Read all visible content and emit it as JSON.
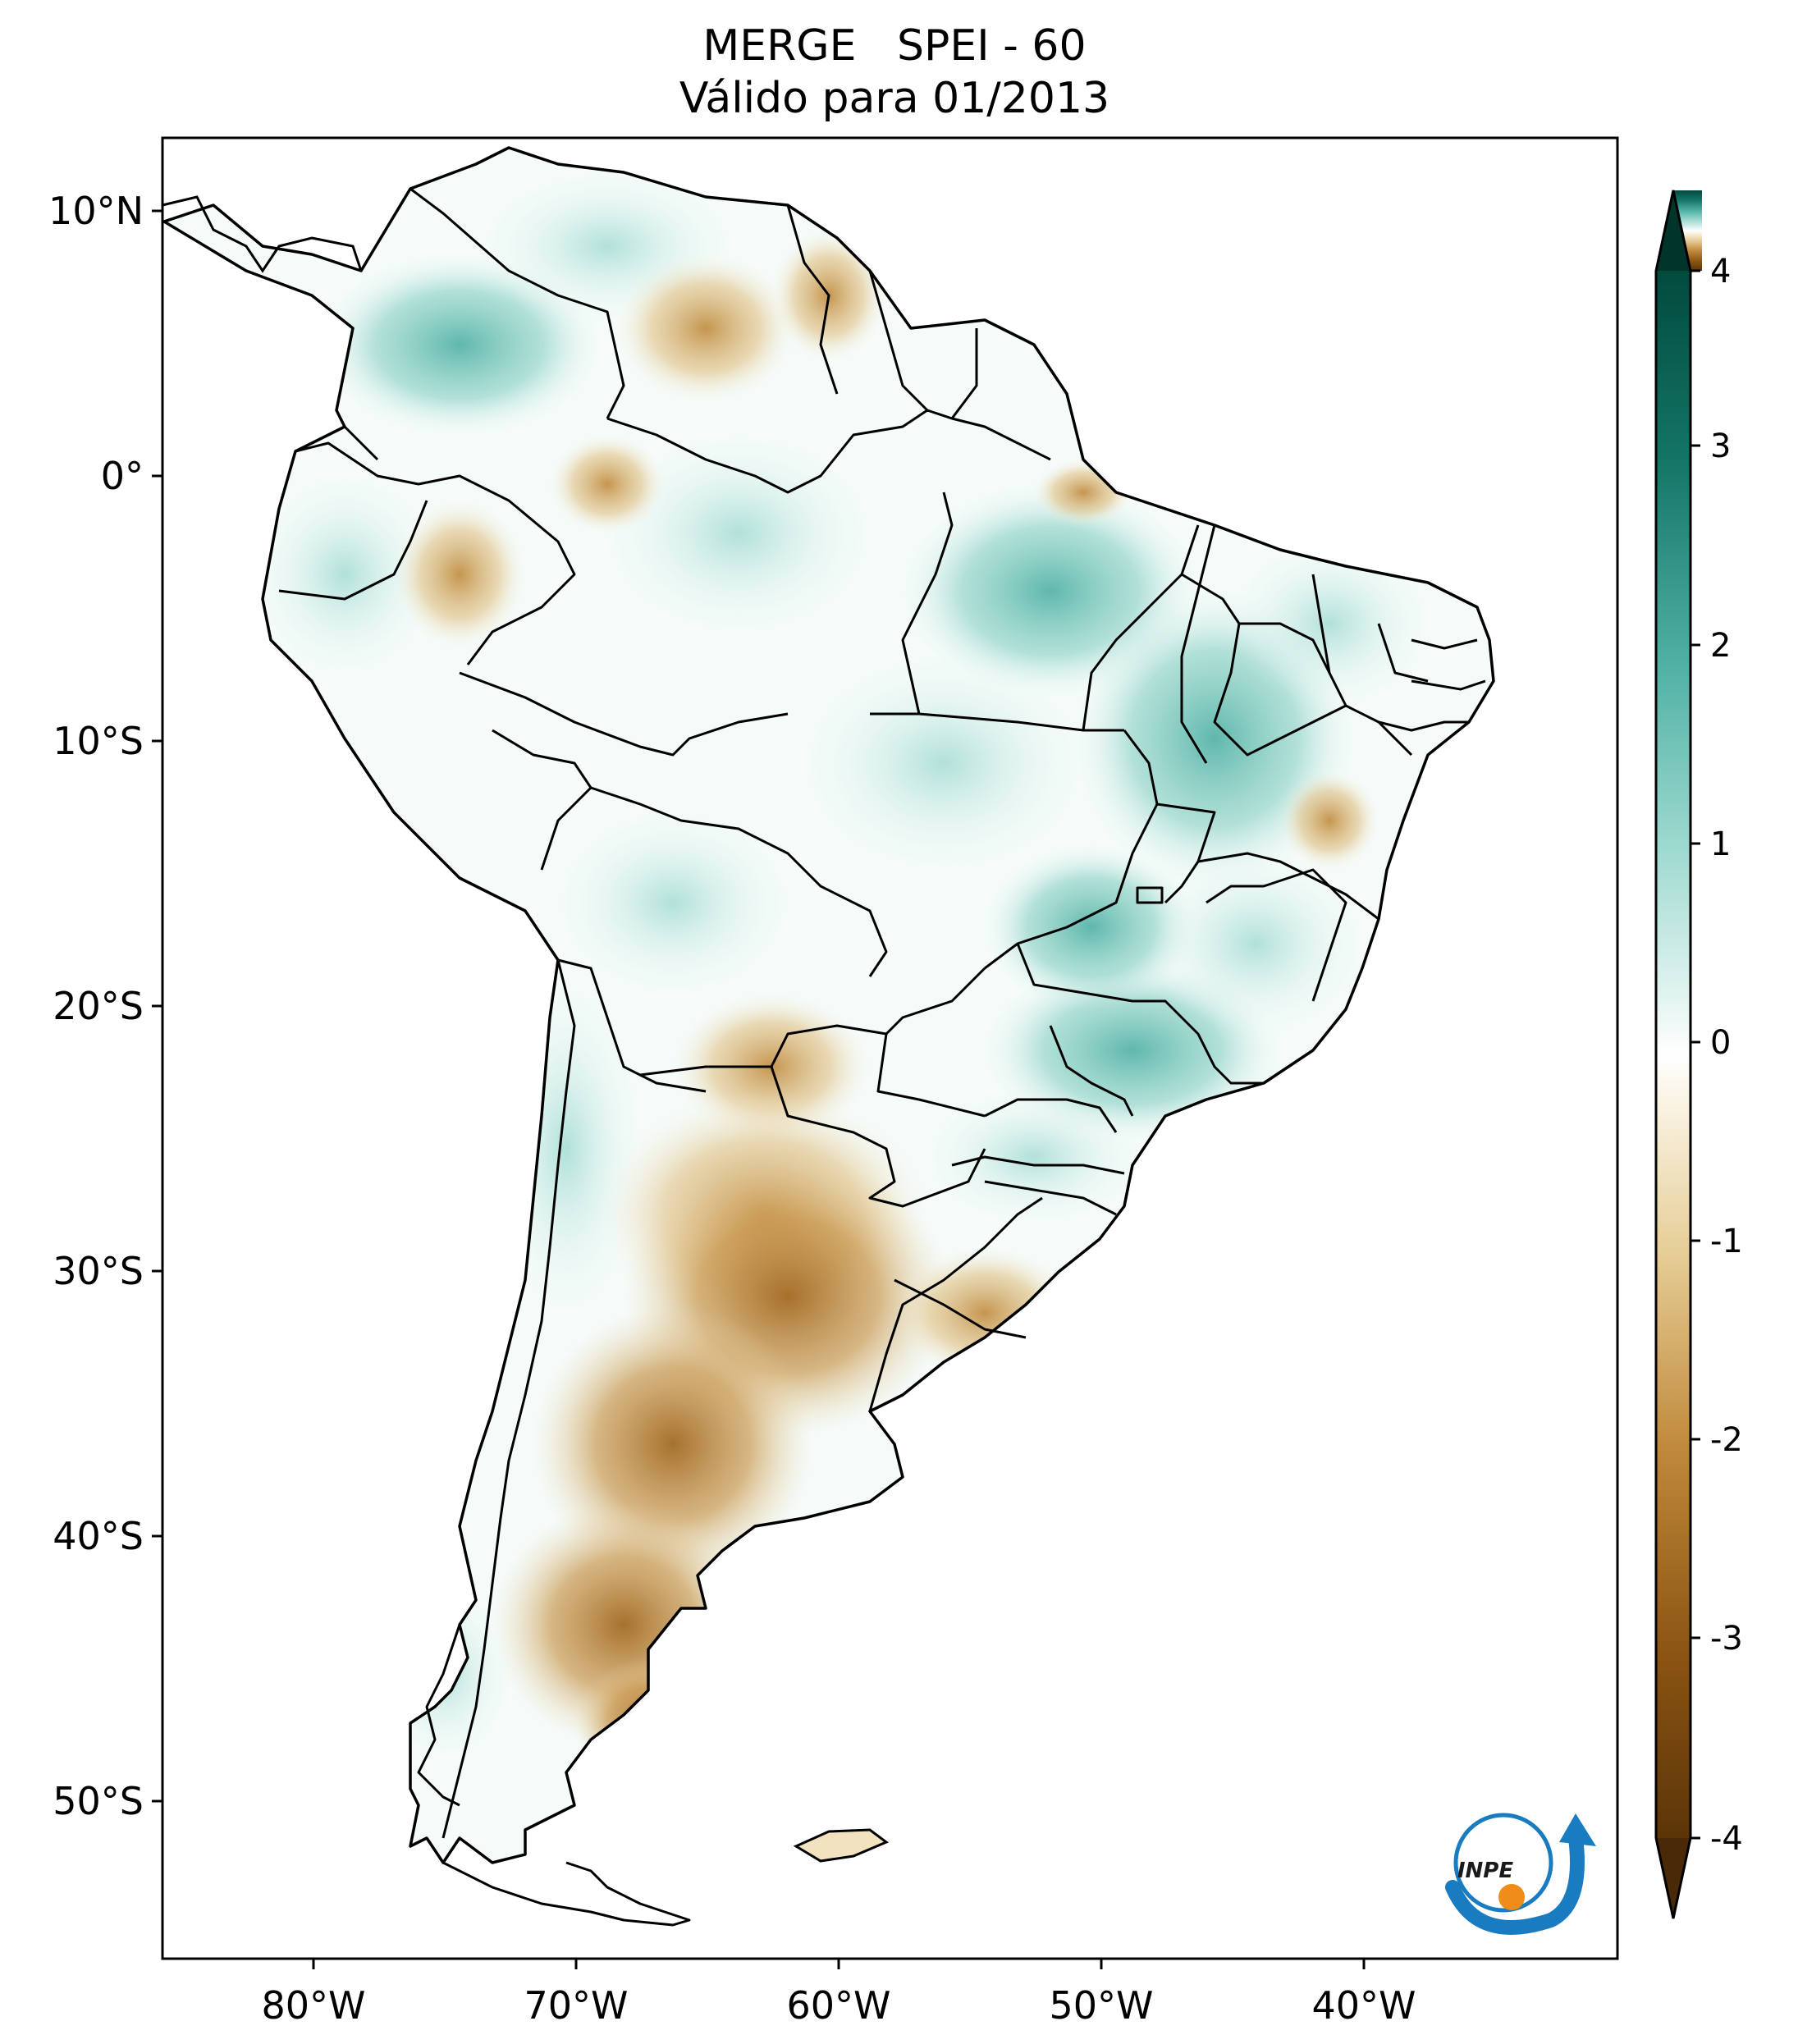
{
  "title": {
    "line1": "MERGE   SPEI - 60",
    "line2": "Válido para 01/2013"
  },
  "map": {
    "lon_ticks": [
      "80°W",
      "70°W",
      "60°W",
      "50°W",
      "40°W"
    ],
    "lat_ticks": [
      "10°N",
      "0°",
      "10°S",
      "20°S",
      "30°S",
      "40°S",
      "50°S"
    ],
    "extent": {
      "lon_min": -85,
      "lon_max": -30,
      "lat_min": -56,
      "lat_max": 13
    }
  },
  "colorbar": {
    "ticks": [
      "4",
      "3",
      "2",
      "1",
      "0",
      "-1",
      "-2",
      "-3",
      "-4"
    ],
    "extend": "both",
    "colors": {
      "max": "#01352c",
      "high": "#1d8a80",
      "mid_high": "#86cfc2",
      "zero": "#ffffff",
      "mid_low": "#e8cf98",
      "low": "#b67d25",
      "min": "#4a2a06"
    }
  },
  "logo": {
    "text": "INPE"
  }
}
